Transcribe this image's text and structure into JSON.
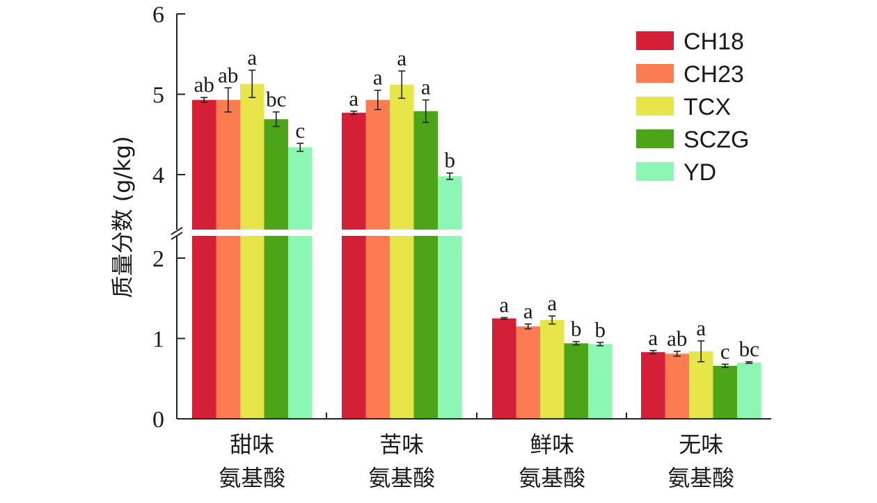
{
  "chart_data": {
    "type": "bar",
    "title": "",
    "xlabel": "",
    "ylabel": "质量分数 (g/kg)",
    "categories": [
      [
        "甜味",
        "氨基酸"
      ],
      [
        "苦味",
        "氨基酸"
      ],
      [
        "鲜味",
        "氨基酸"
      ],
      [
        "无味",
        "氨基酸"
      ]
    ],
    "y_ticks": [
      "0",
      "1",
      "2",
      "4",
      "5",
      "6"
    ],
    "y_axis_break": {
      "lower_range": [
        0,
        2.5
      ],
      "upper_range": [
        3.3,
        6
      ]
    },
    "legend_position": "top-right",
    "series": [
      {
        "name": "CH18",
        "color": "#d51f37",
        "values": [
          4.93,
          4.77,
          1.25,
          0.83
        ],
        "errors": [
          0.03,
          0.02,
          0.01,
          0.02
        ],
        "labels": [
          "ab",
          "a",
          "a",
          "a"
        ]
      },
      {
        "name": "CH23",
        "color": "#fc7c52",
        "values": [
          4.93,
          4.93,
          1.15,
          0.81
        ],
        "errors": [
          0.15,
          0.12,
          0.03,
          0.03
        ],
        "labels": [
          "ab",
          "a",
          "a",
          "ab"
        ]
      },
      {
        "name": "TCX",
        "color": "#e6e64b",
        "values": [
          5.13,
          5.12,
          1.23,
          0.84
        ],
        "errors": [
          0.17,
          0.17,
          0.05,
          0.13
        ],
        "labels": [
          "a",
          "a",
          "a",
          "a"
        ]
      },
      {
        "name": "SCZG",
        "color": "#4ca418",
        "values": [
          4.69,
          4.79,
          0.94,
          0.66
        ],
        "errors": [
          0.09,
          0.14,
          0.02,
          0.02
        ],
        "labels": [
          "bc",
          "a",
          "b",
          "c"
        ]
      },
      {
        "name": "YD",
        "color": "#8bf7b2",
        "values": [
          4.34,
          3.98,
          0.93,
          0.7
        ],
        "errors": [
          0.05,
          0.04,
          0.02,
          0.01
        ],
        "labels": [
          "c",
          "b",
          "b",
          "bc"
        ]
      }
    ]
  }
}
